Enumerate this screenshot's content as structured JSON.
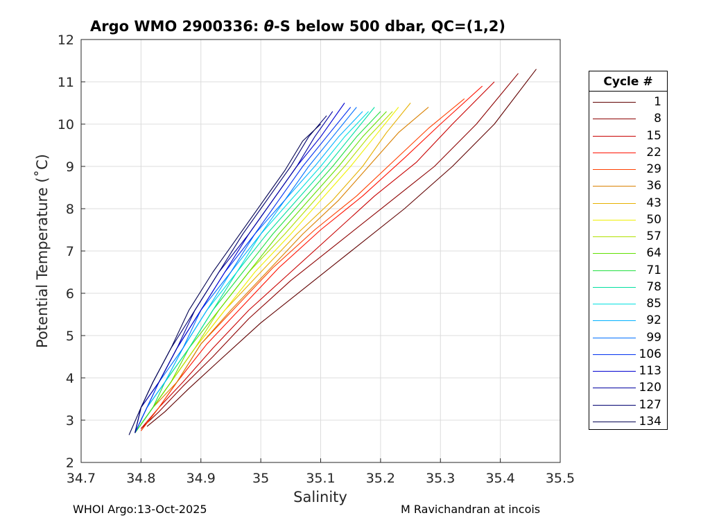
{
  "title": {
    "prefix": "Argo WMO 2900336: ",
    "theta": "θ",
    "suffix": "-S below 500 dbar,  QC=(1,2)"
  },
  "footer": {
    "left": "WHOI Argo:13-Oct-2025",
    "right": "M Ravichandran at incois"
  },
  "chart_data": {
    "type": "line",
    "title": "Argo WMO 2900336: θ-S below 500 dbar,  QC=(1,2)",
    "xlabel": "Salinity",
    "ylabel": "Potential Temperature (˚C)",
    "xlim": [
      34.7,
      35.5
    ],
    "ylim": [
      2,
      12
    ],
    "xticks": [
      "34.7",
      "34.8",
      "34.9",
      "35",
      "35.1",
      "35.2",
      "35.3",
      "35.4",
      "35.5"
    ],
    "yticks": [
      "2",
      "3",
      "4",
      "5",
      "6",
      "7",
      "8",
      "9",
      "10",
      "11",
      "12"
    ],
    "grid": true,
    "legend_title": "Cycle #",
    "legend_position": "right-outside",
    "series": [
      {
        "name": "1",
        "color": "#600000",
        "x": [
          34.81,
          34.84,
          34.88,
          34.93,
          35.0,
          35.08,
          35.16,
          35.24,
          35.32,
          35.39,
          35.46
        ],
        "y": [
          2.85,
          3.2,
          3.75,
          4.4,
          5.3,
          6.2,
          7.1,
          8.0,
          9.0,
          10.0,
          11.3
        ]
      },
      {
        "name": "8",
        "color": "#8c0000",
        "x": [
          34.8,
          34.83,
          34.87,
          34.92,
          34.98,
          35.05,
          35.13,
          35.21,
          35.29,
          35.36,
          35.43
        ],
        "y": [
          2.8,
          3.2,
          3.8,
          4.5,
          5.4,
          6.3,
          7.2,
          8.1,
          9.0,
          10.0,
          11.2
        ]
      },
      {
        "name": "15",
        "color": "#c80000",
        "x": [
          34.8,
          34.83,
          34.87,
          34.92,
          34.98,
          35.05,
          35.12,
          35.19,
          35.26,
          35.32,
          35.39
        ],
        "y": [
          2.8,
          3.3,
          3.9,
          4.7,
          5.6,
          6.5,
          7.4,
          8.3,
          9.1,
          10.0,
          11.0
        ]
      },
      {
        "name": "22",
        "color": "#ff1000",
        "x": [
          34.8,
          34.83,
          34.86,
          34.91,
          34.97,
          35.03,
          35.1,
          35.17,
          35.24,
          35.3,
          35.37
        ],
        "y": [
          2.75,
          3.3,
          3.9,
          4.8,
          5.7,
          6.6,
          7.5,
          8.3,
          9.2,
          10.0,
          10.9
        ]
      },
      {
        "name": "29",
        "color": "#ff4000",
        "x": [
          34.8,
          34.83,
          34.86,
          34.9,
          34.96,
          35.02,
          35.09,
          35.16,
          35.22,
          35.28,
          35.34
        ],
        "y": [
          2.75,
          3.3,
          3.9,
          4.8,
          5.7,
          6.6,
          7.5,
          8.3,
          9.1,
          9.9,
          10.6
        ]
      },
      {
        "name": "36",
        "color": "#d98000",
        "x": [
          34.79,
          34.82,
          34.86,
          34.9,
          34.95,
          35.01,
          35.07,
          35.13,
          35.18,
          35.23,
          35.28
        ],
        "y": [
          2.7,
          3.3,
          3.9,
          4.8,
          5.6,
          6.5,
          7.4,
          8.2,
          9.0,
          9.8,
          10.4
        ]
      },
      {
        "name": "43",
        "color": "#e6b000",
        "x": [
          34.79,
          34.82,
          34.85,
          34.89,
          34.94,
          35.0,
          35.06,
          35.12,
          35.17,
          35.21,
          35.25
        ],
        "y": [
          2.7,
          3.3,
          3.9,
          4.7,
          5.6,
          6.5,
          7.4,
          8.2,
          9.0,
          9.8,
          10.5
        ]
      },
      {
        "name": "50",
        "color": "#f0f000",
        "x": [
          34.79,
          34.82,
          34.85,
          34.89,
          34.94,
          34.99,
          35.05,
          35.1,
          35.15,
          35.19,
          35.23
        ],
        "y": [
          2.7,
          3.3,
          3.9,
          4.7,
          5.6,
          6.5,
          7.4,
          8.2,
          9.0,
          9.7,
          10.4
        ]
      },
      {
        "name": "57",
        "color": "#b0e000",
        "x": [
          34.79,
          34.82,
          34.85,
          34.89,
          34.93,
          34.98,
          35.04,
          35.09,
          35.14,
          35.18,
          35.22
        ],
        "y": [
          2.7,
          3.3,
          3.9,
          4.7,
          5.6,
          6.5,
          7.4,
          8.2,
          9.0,
          9.7,
          10.3
        ]
      },
      {
        "name": "64",
        "color": "#60e000",
        "x": [
          34.79,
          34.82,
          34.85,
          34.88,
          34.93,
          34.98,
          35.03,
          35.08,
          35.13,
          35.17,
          35.21
        ],
        "y": [
          2.7,
          3.3,
          3.9,
          4.7,
          5.6,
          6.5,
          7.4,
          8.2,
          9.0,
          9.7,
          10.3
        ]
      },
      {
        "name": "71",
        "color": "#20e040",
        "x": [
          34.79,
          34.82,
          34.84,
          34.88,
          34.92,
          34.97,
          35.02,
          35.07,
          35.12,
          35.16,
          35.2
        ],
        "y": [
          2.7,
          3.3,
          3.9,
          4.7,
          5.6,
          6.5,
          7.4,
          8.2,
          9.0,
          9.7,
          10.3
        ]
      },
      {
        "name": "78",
        "color": "#00e0a0",
        "x": [
          34.79,
          34.81,
          34.84,
          34.88,
          34.92,
          34.96,
          35.01,
          35.06,
          35.11,
          35.15,
          35.19
        ],
        "y": [
          2.7,
          3.3,
          3.9,
          4.7,
          5.6,
          6.5,
          7.4,
          8.2,
          9.0,
          9.7,
          10.4
        ]
      },
      {
        "name": "85",
        "color": "#00e0e0",
        "x": [
          34.79,
          34.81,
          34.84,
          34.87,
          34.91,
          34.96,
          35.0,
          35.05,
          35.1,
          35.14,
          35.18
        ],
        "y": [
          2.7,
          3.3,
          3.9,
          4.7,
          5.6,
          6.5,
          7.4,
          8.2,
          9.0,
          9.7,
          10.3
        ]
      },
      {
        "name": "92",
        "color": "#00b0ff",
        "x": [
          34.79,
          34.81,
          34.84,
          34.87,
          34.91,
          34.95,
          35.0,
          35.04,
          35.09,
          35.13,
          35.17
        ],
        "y": [
          2.7,
          3.3,
          3.9,
          4.7,
          5.6,
          6.5,
          7.4,
          8.2,
          9.0,
          9.7,
          10.3
        ]
      },
      {
        "name": "99",
        "color": "#0070ff",
        "x": [
          34.79,
          34.81,
          34.83,
          34.87,
          34.9,
          34.95,
          34.99,
          35.04,
          35.08,
          35.12,
          35.16
        ],
        "y": [
          2.7,
          3.3,
          3.9,
          4.7,
          5.6,
          6.5,
          7.4,
          8.2,
          9.0,
          9.7,
          10.4
        ]
      },
      {
        "name": "106",
        "color": "#0030f0",
        "x": [
          34.79,
          34.81,
          34.83,
          34.86,
          34.9,
          34.94,
          34.99,
          35.03,
          35.07,
          35.11,
          35.15
        ],
        "y": [
          2.7,
          3.3,
          3.9,
          4.7,
          5.6,
          6.5,
          7.4,
          8.2,
          9.0,
          9.7,
          10.4
        ]
      },
      {
        "name": "113",
        "color": "#0000d0",
        "x": [
          34.79,
          34.8,
          34.83,
          34.86,
          34.9,
          34.94,
          34.98,
          35.02,
          35.06,
          35.1,
          35.14
        ],
        "y": [
          2.7,
          3.3,
          3.9,
          4.7,
          5.6,
          6.5,
          7.4,
          8.2,
          9.0,
          9.7,
          10.5
        ]
      },
      {
        "name": "120",
        "color": "#0000a0",
        "x": [
          34.79,
          34.8,
          34.83,
          34.86,
          34.89,
          34.93,
          34.98,
          35.02,
          35.06,
          35.09,
          35.12
        ],
        "y": [
          2.7,
          3.3,
          3.9,
          4.7,
          5.6,
          6.5,
          7.4,
          8.2,
          9.0,
          9.7,
          10.3
        ]
      },
      {
        "name": "127",
        "color": "#000070",
        "x": [
          34.79,
          34.8,
          34.82,
          34.85,
          34.89,
          34.93,
          34.97,
          35.01,
          35.05,
          35.08,
          35.11
        ],
        "y": [
          2.7,
          3.3,
          3.9,
          4.7,
          5.6,
          6.5,
          7.4,
          8.2,
          9.0,
          9.7,
          10.2
        ]
      },
      {
        "name": "134",
        "color": "#000050",
        "x": [
          34.78,
          34.8,
          34.82,
          34.85,
          34.88,
          34.92,
          34.96,
          35.0,
          35.04,
          35.07,
          35.1
        ],
        "y": [
          2.65,
          3.3,
          3.9,
          4.7,
          5.6,
          6.5,
          7.3,
          8.1,
          8.9,
          9.6,
          10.0
        ]
      }
    ]
  }
}
